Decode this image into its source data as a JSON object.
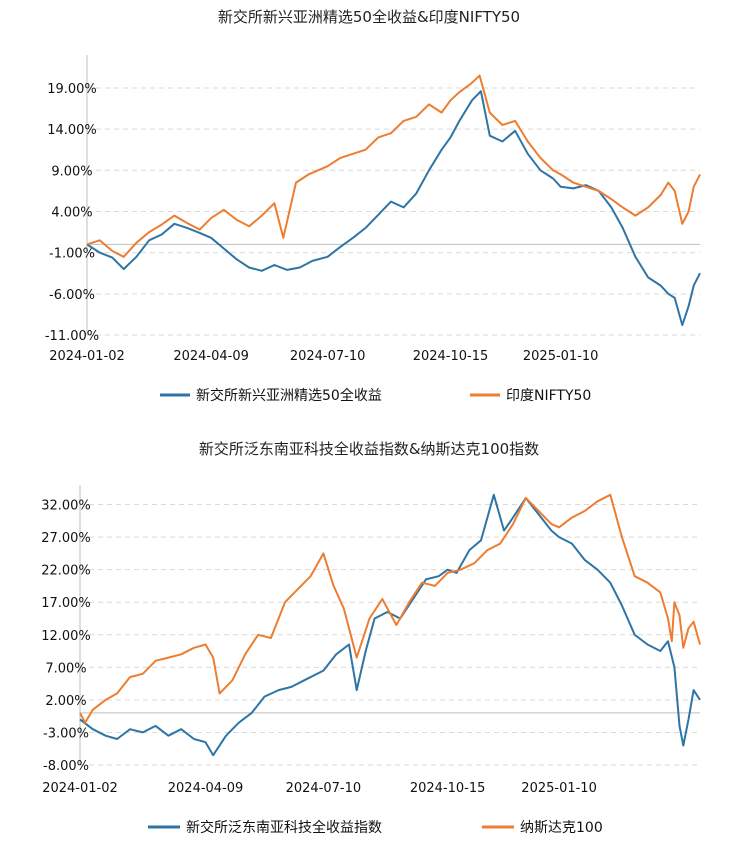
{
  "chart_data": [
    {
      "type": "line",
      "title": "新交所新兴亚洲精选50全收益&印度NIFTY50",
      "xlabel": "",
      "ylabel": "",
      "ylim": [
        -11,
        23
      ],
      "yticks": [
        "19.00%",
        "14.00%",
        "9.00%",
        "4.00%",
        "-1.00%",
        "-6.00%",
        "-11.00%"
      ],
      "ytick_values": [
        19,
        14,
        9,
        4,
        -1,
        -6,
        -11
      ],
      "xlim": [
        "2024-01-02",
        "2025-04-30"
      ],
      "xticks": [
        "2024-01-02",
        "2024-04-09",
        "2024-07-10",
        "2024-10-15",
        "2025-01-10"
      ],
      "grid": true,
      "legend": "bottom",
      "series": [
        {
          "name": "新交所新兴亚洲精选50全收益",
          "color": "#2e75a6",
          "points": [
            [
              "2024-01-02",
              0.0
            ],
            [
              "2024-01-12",
              -1.0
            ],
            [
              "2024-01-22",
              -1.6
            ],
            [
              "2024-01-31",
              -3.0
            ],
            [
              "2024-02-10",
              -1.5
            ],
            [
              "2024-02-20",
              0.5
            ],
            [
              "2024-03-01",
              1.2
            ],
            [
              "2024-03-11",
              2.5
            ],
            [
              "2024-03-21",
              2.0
            ],
            [
              "2024-03-31",
              1.4
            ],
            [
              "2024-04-09",
              0.8
            ],
            [
              "2024-04-19",
              -0.5
            ],
            [
              "2024-04-29",
              -1.8
            ],
            [
              "2024-05-09",
              -2.8
            ],
            [
              "2024-05-19",
              -3.2
            ],
            [
              "2024-05-29",
              -2.5
            ],
            [
              "2024-06-08",
              -3.1
            ],
            [
              "2024-06-18",
              -2.8
            ],
            [
              "2024-06-28",
              -2.0
            ],
            [
              "2024-07-10",
              -1.5
            ],
            [
              "2024-07-20",
              -0.3
            ],
            [
              "2024-07-30",
              0.8
            ],
            [
              "2024-08-09",
              2.0
            ],
            [
              "2024-08-19",
              3.6
            ],
            [
              "2024-08-29",
              5.2
            ],
            [
              "2024-09-08",
              4.5
            ],
            [
              "2024-09-18",
              6.2
            ],
            [
              "2024-09-28",
              9.0
            ],
            [
              "2024-10-08",
              11.5
            ],
            [
              "2024-10-15",
              13.0
            ],
            [
              "2024-10-22",
              15.0
            ],
            [
              "2024-11-01",
              17.5
            ],
            [
              "2024-11-08",
              18.6
            ],
            [
              "2024-11-15",
              13.2
            ],
            [
              "2024-11-25",
              12.5
            ],
            [
              "2024-12-05",
              13.8
            ],
            [
              "2024-12-15",
              11.0
            ],
            [
              "2024-12-25",
              9.0
            ],
            [
              "2025-01-04",
              8.0
            ],
            [
              "2025-01-10",
              7.0
            ],
            [
              "2025-01-20",
              6.8
            ],
            [
              "2025-01-30",
              7.2
            ],
            [
              "2025-02-09",
              6.5
            ],
            [
              "2025-02-19",
              4.5
            ],
            [
              "2025-02-28",
              2.0
            ],
            [
              "2025-03-10",
              -1.5
            ],
            [
              "2025-03-20",
              -4.0
            ],
            [
              "2025-03-30",
              -5.0
            ],
            [
              "2025-04-05",
              -6.0
            ],
            [
              "2025-04-10",
              -6.5
            ],
            [
              "2025-04-16",
              -9.8
            ],
            [
              "2025-04-21",
              -7.5
            ],
            [
              "2025-04-25",
              -5.0
            ],
            [
              "2025-04-30",
              -3.5
            ]
          ]
        },
        {
          "name": "印度NIFTY50",
          "color": "#ed7d31",
          "points": [
            [
              "2024-01-02",
              0.0
            ],
            [
              "2024-01-12",
              0.5
            ],
            [
              "2024-01-22",
              -0.8
            ],
            [
              "2024-01-31",
              -1.5
            ],
            [
              "2024-02-10",
              0.2
            ],
            [
              "2024-02-20",
              1.5
            ],
            [
              "2024-03-01",
              2.4
            ],
            [
              "2024-03-11",
              3.5
            ],
            [
              "2024-03-21",
              2.6
            ],
            [
              "2024-03-31",
              1.8
            ],
            [
              "2024-04-09",
              3.2
            ],
            [
              "2024-04-19",
              4.2
            ],
            [
              "2024-04-29",
              3.0
            ],
            [
              "2024-05-09",
              2.2
            ],
            [
              "2024-05-19",
              3.5
            ],
            [
              "2024-05-29",
              5.0
            ],
            [
              "2024-06-05",
              0.8
            ],
            [
              "2024-06-15",
              7.5
            ],
            [
              "2024-06-25",
              8.5
            ],
            [
              "2024-07-10",
              9.5
            ],
            [
              "2024-07-20",
              10.5
            ],
            [
              "2024-07-30",
              11.0
            ],
            [
              "2024-08-09",
              11.5
            ],
            [
              "2024-08-19",
              13.0
            ],
            [
              "2024-08-29",
              13.5
            ],
            [
              "2024-09-08",
              15.0
            ],
            [
              "2024-09-18",
              15.5
            ],
            [
              "2024-09-28",
              17.0
            ],
            [
              "2024-10-08",
              16.0
            ],
            [
              "2024-10-15",
              17.5
            ],
            [
              "2024-10-22",
              18.5
            ],
            [
              "2024-10-31",
              19.5
            ],
            [
              "2024-11-07",
              20.5
            ],
            [
              "2024-11-15",
              16.0
            ],
            [
              "2024-11-25",
              14.5
            ],
            [
              "2024-12-05",
              15.0
            ],
            [
              "2024-12-15",
              12.5
            ],
            [
              "2024-12-25",
              10.5
            ],
            [
              "2025-01-04",
              9.0
            ],
            [
              "2025-01-10",
              8.5
            ],
            [
              "2025-01-20",
              7.5
            ],
            [
              "2025-01-30",
              7.0
            ],
            [
              "2025-02-09",
              6.5
            ],
            [
              "2025-02-19",
              5.5
            ],
            [
              "2025-02-28",
              4.5
            ],
            [
              "2025-03-10",
              3.5
            ],
            [
              "2025-03-20",
              4.5
            ],
            [
              "2025-03-30",
              6.0
            ],
            [
              "2025-04-05",
              7.5
            ],
            [
              "2025-04-10",
              6.5
            ],
            [
              "2025-04-16",
              2.5
            ],
            [
              "2025-04-21",
              4.0
            ],
            [
              "2025-04-25",
              7.0
            ],
            [
              "2025-04-30",
              8.5
            ]
          ]
        }
      ]
    },
    {
      "type": "line",
      "title": "新交所泛东南亚科技全收益指数&纳斯达克100指数",
      "xlabel": "",
      "ylabel": "",
      "ylim": [
        -8,
        35
      ],
      "yticks": [
        "32.00%",
        "27.00%",
        "22.00%",
        "17.00%",
        "12.00%",
        "7.00%",
        "2.00%",
        "-3.00%",
        "-8.00%"
      ],
      "ytick_values": [
        32,
        27,
        22,
        17,
        12,
        7,
        2,
        -3,
        -8
      ],
      "xlim": [
        "2024-01-02",
        "2025-04-30"
      ],
      "xticks": [
        "2024-01-02",
        "2024-04-09",
        "2024-07-10",
        "2024-10-15",
        "2025-01-10"
      ],
      "grid": true,
      "legend": "bottom",
      "series": [
        {
          "name": "新交所泛东南亚科技全收益指数",
          "color": "#2e75a6",
          "points": [
            [
              "2024-01-02",
              -1.0
            ],
            [
              "2024-01-12",
              -2.5
            ],
            [
              "2024-01-22",
              -3.5
            ],
            [
              "2024-01-31",
              -4.0
            ],
            [
              "2024-02-10",
              -2.5
            ],
            [
              "2024-02-20",
              -3.0
            ],
            [
              "2024-03-01",
              -2.0
            ],
            [
              "2024-03-11",
              -3.5
            ],
            [
              "2024-03-21",
              -2.5
            ],
            [
              "2024-03-31",
              -4.0
            ],
            [
              "2024-04-09",
              -4.5
            ],
            [
              "2024-04-15",
              -6.5
            ],
            [
              "2024-04-25",
              -3.5
            ],
            [
              "2024-05-05",
              -1.5
            ],
            [
              "2024-05-15",
              0.0
            ],
            [
              "2024-05-25",
              2.5
            ],
            [
              "2024-06-05",
              3.5
            ],
            [
              "2024-06-15",
              4.0
            ],
            [
              "2024-06-25",
              5.0
            ],
            [
              "2024-07-10",
              6.5
            ],
            [
              "2024-07-20",
              9.0
            ],
            [
              "2024-07-30",
              10.5
            ],
            [
              "2024-08-05",
              3.5
            ],
            [
              "2024-08-12",
              9.5
            ],
            [
              "2024-08-19",
              14.5
            ],
            [
              "2024-08-29",
              15.5
            ],
            [
              "2024-09-08",
              14.5
            ],
            [
              "2024-09-18",
              17.5
            ],
            [
              "2024-09-28",
              20.5
            ],
            [
              "2024-10-08",
              21.0
            ],
            [
              "2024-10-15",
              22.0
            ],
            [
              "2024-10-22",
              21.5
            ],
            [
              "2024-11-01",
              25.0
            ],
            [
              "2024-11-10",
              26.5
            ],
            [
              "2024-11-20",
              33.5
            ],
            [
              "2024-11-28",
              28.0
            ],
            [
              "2024-12-05",
              30.0
            ],
            [
              "2024-12-15",
              33.0
            ],
            [
              "2024-12-25",
              30.5
            ],
            [
              "2025-01-04",
              28.0
            ],
            [
              "2025-01-10",
              27.0
            ],
            [
              "2025-01-20",
              26.0
            ],
            [
              "2025-01-30",
              23.5
            ],
            [
              "2025-02-09",
              22.0
            ],
            [
              "2025-02-19",
              20.0
            ],
            [
              "2025-02-28",
              16.5
            ],
            [
              "2025-03-10",
              12.0
            ],
            [
              "2025-03-20",
              10.5
            ],
            [
              "2025-03-30",
              9.5
            ],
            [
              "2025-04-05",
              11.0
            ],
            [
              "2025-04-10",
              7.0
            ],
            [
              "2025-04-14",
              -2.0
            ],
            [
              "2025-04-17",
              -5.0
            ],
            [
              "2025-04-21",
              -1.0
            ],
            [
              "2025-04-25",
              3.5
            ],
            [
              "2025-04-30",
              2.0
            ]
          ]
        },
        {
          "name": "纳斯达克100",
          "color": "#ed7d31",
          "points": [
            [
              "2024-01-02",
              0.0
            ],
            [
              "2024-01-06",
              -1.5
            ],
            [
              "2024-01-12",
              0.5
            ],
            [
              "2024-01-22",
              2.0
            ],
            [
              "2024-01-31",
              3.0
            ],
            [
              "2024-02-10",
              5.5
            ],
            [
              "2024-02-20",
              6.0
            ],
            [
              "2024-03-01",
              8.0
            ],
            [
              "2024-03-11",
              8.5
            ],
            [
              "2024-03-21",
              9.0
            ],
            [
              "2024-03-31",
              10.0
            ],
            [
              "2024-04-09",
              10.5
            ],
            [
              "2024-04-15",
              8.5
            ],
            [
              "2024-04-20",
              3.0
            ],
            [
              "2024-04-30",
              5.0
            ],
            [
              "2024-05-10",
              9.0
            ],
            [
              "2024-05-20",
              12.0
            ],
            [
              "2024-05-30",
              11.5
            ],
            [
              "2024-06-10",
              17.0
            ],
            [
              "2024-06-20",
              19.0
            ],
            [
              "2024-06-30",
              21.0
            ],
            [
              "2024-07-10",
              24.5
            ],
            [
              "2024-07-18",
              19.5
            ],
            [
              "2024-07-26",
              16.0
            ],
            [
              "2024-08-05",
              8.5
            ],
            [
              "2024-08-15",
              14.5
            ],
            [
              "2024-08-25",
              17.5
            ],
            [
              "2024-09-05",
              13.5
            ],
            [
              "2024-09-15",
              17.0
            ],
            [
              "2024-09-25",
              20.0
            ],
            [
              "2024-10-05",
              19.5
            ],
            [
              "2024-10-15",
              21.5
            ],
            [
              "2024-10-25",
              22.0
            ],
            [
              "2024-11-05",
              23.0
            ],
            [
              "2024-11-15",
              25.0
            ],
            [
              "2024-11-25",
              26.0
            ],
            [
              "2024-12-05",
              29.0
            ],
            [
              "2024-12-15",
              33.0
            ],
            [
              "2024-12-25",
              31.0
            ],
            [
              "2025-01-04",
              29.0
            ],
            [
              "2025-01-10",
              28.5
            ],
            [
              "2025-01-20",
              30.0
            ],
            [
              "2025-01-30",
              31.0
            ],
            [
              "2025-02-09",
              32.5
            ],
            [
              "2025-02-19",
              33.5
            ],
            [
              "2025-02-28",
              27.0
            ],
            [
              "2025-03-10",
              21.0
            ],
            [
              "2025-03-20",
              20.0
            ],
            [
              "2025-03-30",
              18.5
            ],
            [
              "2025-04-05",
              14.5
            ],
            [
              "2025-04-08",
              11.0
            ],
            [
              "2025-04-10",
              17.0
            ],
            [
              "2025-04-14",
              15.0
            ],
            [
              "2025-04-17",
              10.0
            ],
            [
              "2025-04-21",
              13.0
            ],
            [
              "2025-04-25",
              14.0
            ],
            [
              "2025-04-30",
              10.5
            ]
          ]
        }
      ]
    }
  ]
}
